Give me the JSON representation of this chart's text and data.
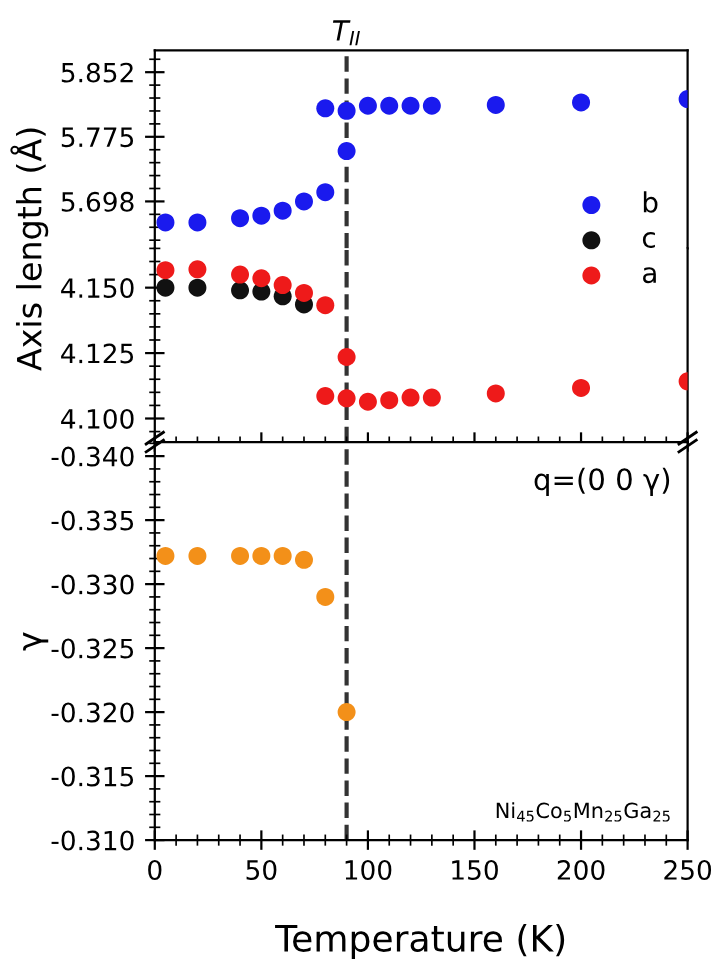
{
  "chart_data": [
    {
      "type": "scatter",
      "ylabel": "Axis length (Å)",
      "xlim": [
        0,
        250
      ],
      "xticks": [
        0,
        50,
        100,
        150,
        200,
        250
      ],
      "ylim": [
        5.642,
        5.878
      ],
      "yticks": [
        5.698,
        5.775,
        5.852
      ],
      "tick_labels": "y",
      "marker": "circle",
      "grid": false,
      "legend": "right",
      "ref_lines": [
        {
          "axis": "x",
          "value": 90,
          "label": "T$_{II}$",
          "line_style": "dashed",
          "color": "#333333"
        }
      ],
      "series": [
        {
          "name": "b",
          "color": "#1a1aee",
          "x": [
            5,
            20,
            40,
            50,
            60,
            70,
            80,
            80,
            90,
            90,
            100,
            110,
            120,
            130,
            160,
            200,
            250
          ],
          "values": [
            5.673,
            5.673,
            5.678,
            5.681,
            5.687,
            5.698,
            5.709,
            5.809,
            5.806,
            5.758,
            5.812,
            5.812,
            5.812,
            5.812,
            5.813,
            5.816,
            5.82
          ]
        }
      ]
    },
    {
      "type": "scatter",
      "xlim": [
        0,
        250
      ],
      "xticks": [
        0,
        50,
        100,
        150,
        200,
        250
      ],
      "ylim": [
        4.091,
        4.165
      ],
      "yticks": [
        {
          "value": 4.1,
          "label": "4.100"
        },
        4.125,
        {
          "value": 4.15,
          "label": "4.150"
        }
      ],
      "tick_labels": "y",
      "marker": "circle",
      "grid": false,
      "legend": "right",
      "ref_lines": [
        {
          "axis": "x",
          "value": 90,
          "line_style": "dashed",
          "color": "#333333"
        }
      ],
      "series": [
        {
          "name": "c",
          "color": "#111111",
          "x": [
            5,
            20,
            40,
            50,
            60,
            70
          ],
          "values": [
            4.15,
            4.15,
            4.149,
            4.1485,
            4.1467,
            4.1436
          ]
        },
        {
          "name": "a",
          "color": "#ee1a1a",
          "x": [
            5,
            20,
            40,
            50,
            60,
            70,
            80,
            80,
            90,
            90,
            100,
            110,
            120,
            130,
            160,
            200,
            250
          ],
          "values": [
            4.1567,
            4.157,
            4.155,
            4.1536,
            4.151,
            4.148,
            4.1433,
            4.1086,
            4.1235,
            4.1077,
            4.1064,
            4.107,
            4.108,
            4.108,
            4.1096,
            4.1117,
            4.1142
          ]
        }
      ]
    },
    {
      "type": "scatter",
      "xlabel": "Temperature (K)",
      "ylabel": "γ",
      "xlim": [
        0,
        250
      ],
      "xticks": [
        0,
        50,
        100,
        150,
        200,
        250
      ],
      "ylim": [
        -0.31,
        -0.3411
      ],
      "yticks": [
        {
          "value": -0.34,
          "label": "-0.340"
        },
        -0.335,
        {
          "value": -0.33,
          "label": "-0.330"
        },
        -0.325,
        {
          "value": -0.32,
          "label": "-0.320"
        },
        -0.315,
        {
          "value": -0.31,
          "label": "-0.310"
        }
      ],
      "marker": "circle",
      "grid": false,
      "annotations": [
        "q=(0 0 γ)",
        "Ni$_{45}$Co$_{5}$Mn$_{25}$Ga$_{25}$"
      ],
      "ref_lines": [
        {
          "axis": "x",
          "value": 90,
          "line_style": "dashed",
          "color": "#333333"
        }
      ],
      "series": [
        {
          "color": "#f39019",
          "x": [
            5,
            20,
            40,
            50,
            60,
            70,
            80,
            90
          ],
          "values": [
            -0.3322,
            -0.3322,
            -0.3322,
            -0.3322,
            -0.3322,
            -0.3319,
            -0.329,
            -0.32
          ]
        }
      ]
    }
  ]
}
